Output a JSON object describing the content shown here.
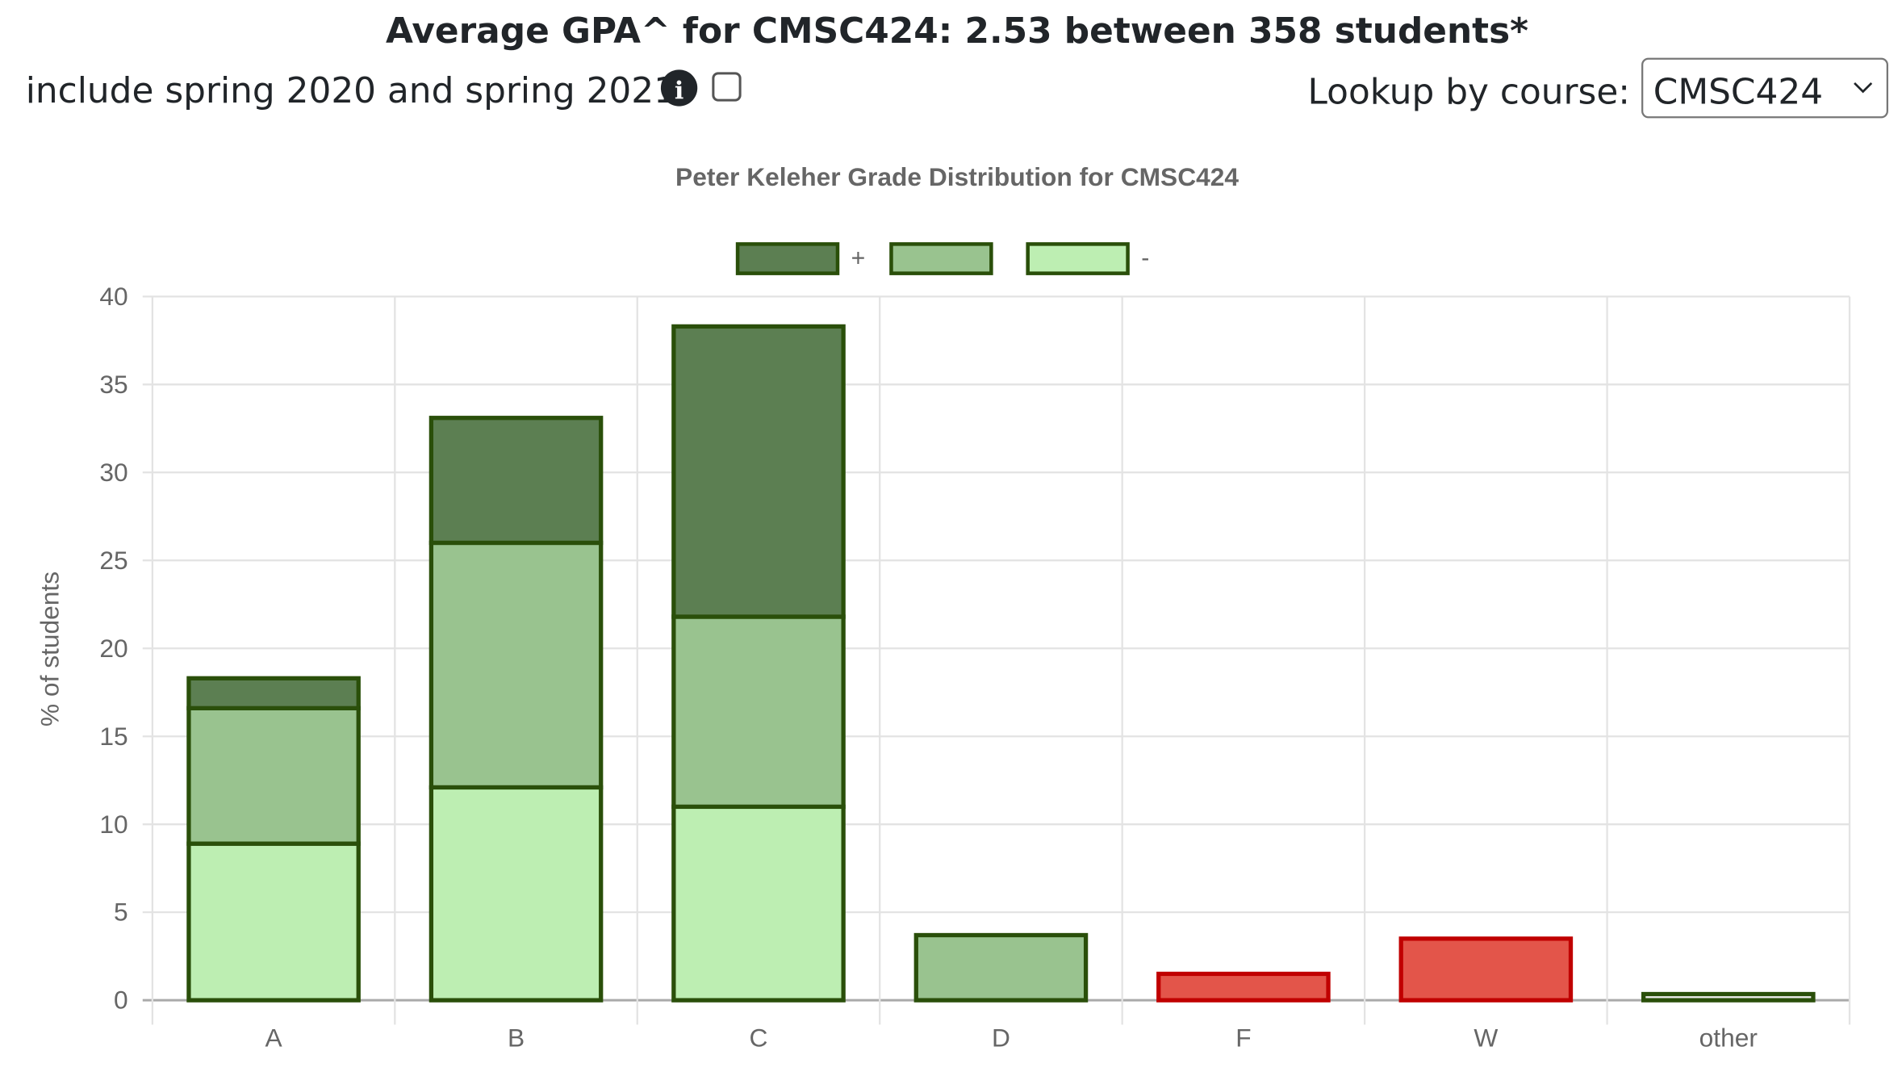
{
  "header": {
    "title": "Average GPA^ for CMSC424: 2.53 between 358 students*",
    "include_label": "include spring 2020 and spring 2021",
    "include_checked": false,
    "info_icon": "info-circle-icon",
    "lookup_label": "Lookup by course:",
    "course_select_value": "CMSC424"
  },
  "chart_data": {
    "type": "bar",
    "stacked": true,
    "title": "Peter Keleher Grade Distribution for CMSC424",
    "ylabel": "% of students",
    "xlabel": "",
    "ylim": [
      0,
      40
    ],
    "yticks": [
      "0",
      "5",
      "10",
      "15",
      "20",
      "25",
      "30",
      "35",
      "40"
    ],
    "grid": true,
    "legend_position": "top",
    "categories": [
      "A",
      "B",
      "C",
      "D",
      "F",
      "W",
      "other"
    ],
    "series": [
      {
        "name": "-",
        "key": "minus",
        "fill": "#bdeeb2",
        "border": "#2a4f0a",
        "values": [
          8.9,
          12.1,
          11.0,
          0,
          0,
          0,
          0
        ]
      },
      {
        "name": "",
        "key": "base",
        "fill": "#99c38f",
        "border": "#2a4f0a",
        "values": [
          7.7,
          13.9,
          10.8,
          3.7,
          0,
          0,
          0
        ]
      },
      {
        "name": "+",
        "key": "plus",
        "fill": "#5c7f52",
        "border": "#2a4f0a",
        "values": [
          1.7,
          7.1,
          16.5,
          0,
          0,
          0,
          0
        ]
      },
      {
        "name": "",
        "key": "fail",
        "fill": "#e3554a",
        "border": "#c00000",
        "values": [
          0,
          0,
          0,
          0,
          1.5,
          3.5,
          0
        ]
      },
      {
        "name": "",
        "key": "other",
        "fill": "#eeeeee",
        "border": "#2a4f0a",
        "values": [
          0,
          0,
          0,
          0,
          0,
          0,
          0.35
        ]
      }
    ],
    "legend": [
      {
        "label": "+",
        "fill": "#5c7f52",
        "border": "#2a4f0a"
      },
      {
        "label": "",
        "fill": "#99c38f",
        "border": "#2a4f0a"
      },
      {
        "label": "-",
        "fill": "#bdeeb2",
        "border": "#2a4f0a"
      }
    ]
  }
}
